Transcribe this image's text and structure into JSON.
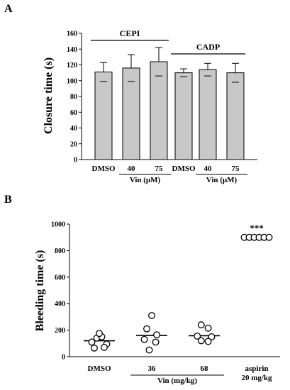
{
  "figure": {
    "panel_a_letter": "A",
    "panel_b_letter": "B"
  },
  "chart_data": [
    {
      "panel": "A",
      "type": "bar",
      "ylabel": "Closure time (s)",
      "ylim": [
        0,
        160
      ],
      "yticks": [
        "0",
        "20",
        "40",
        "60",
        "80",
        "100",
        "120",
        "140",
        "160"
      ],
      "categories": [
        "DMSO",
        "40",
        "75",
        "DMSO",
        "40",
        "75"
      ],
      "values": [
        111,
        116,
        124,
        110,
        114,
        110
      ],
      "errors": [
        12,
        17,
        18,
        5,
        8,
        12
      ],
      "bar_color": "#c8c8c8",
      "groups": [
        {
          "label": "CEPI",
          "range": [
            0,
            2
          ]
        },
        {
          "label": "CADP",
          "range": [
            3,
            5
          ]
        }
      ],
      "sublabels": [
        {
          "label": "Vin (μM)",
          "range": [
            1,
            2
          ]
        },
        {
          "label": "Vin (μM)",
          "range": [
            4,
            5
          ]
        }
      ]
    },
    {
      "panel": "B",
      "type": "scatter",
      "ylabel": "Bleeding time (s)",
      "ylim": [
        0,
        1000
      ],
      "yticks": [
        "0",
        "200",
        "400",
        "600",
        "800",
        "1000"
      ],
      "categories": [
        "DMSO",
        "36",
        "68",
        "aspirin"
      ],
      "category_line2": [
        "",
        "",
        "",
        "20 mg/kg"
      ],
      "points": [
        {
          "category": 0,
          "dx": -1.5,
          "y": 110
        },
        {
          "category": 0,
          "dx": -0.5,
          "y": 140
        },
        {
          "category": 0,
          "dx": 0.5,
          "y": 150
        },
        {
          "category": 0,
          "dx": 1.5,
          "y": 95
        },
        {
          "category": 0,
          "dx": -1,
          "y": 65
        },
        {
          "category": 0,
          "dx": 0,
          "y": 175
        },
        {
          "category": 0,
          "dx": 1,
          "y": 70
        },
        {
          "category": 1,
          "dx": 0,
          "y": 310
        },
        {
          "category": 1,
          "dx": -1,
          "y": 210
        },
        {
          "category": 1,
          "dx": 1,
          "y": 165
        },
        {
          "category": 1,
          "dx": -1.5,
          "y": 130
        },
        {
          "category": 1,
          "dx": 0.8,
          "y": 110
        },
        {
          "category": 1,
          "dx": -0.5,
          "y": 50
        },
        {
          "category": 2,
          "dx": -0.6,
          "y": 240
        },
        {
          "category": 2,
          "dx": 0.8,
          "y": 215
        },
        {
          "category": 2,
          "dx": -1.4,
          "y": 155
        },
        {
          "category": 2,
          "dx": 1.5,
          "y": 150
        },
        {
          "category": 2,
          "dx": -0.6,
          "y": 120
        },
        {
          "category": 2,
          "dx": 0.8,
          "y": 115
        },
        {
          "category": 3,
          "dx": -2.5,
          "y": 900
        },
        {
          "category": 3,
          "dx": -1.5,
          "y": 900
        },
        {
          "category": 3,
          "dx": -0.5,
          "y": 900
        },
        {
          "category": 3,
          "dx": 0.5,
          "y": 900
        },
        {
          "category": 3,
          "dx": 1.5,
          "y": 900
        },
        {
          "category": 3,
          "dx": 2.5,
          "y": 900
        }
      ],
      "means": [
        120,
        160,
        158,
        900
      ],
      "group_label": {
        "label": "Vin (mg/kg)",
        "range": [
          1,
          2
        ]
      },
      "annotation": {
        "text": "***",
        "category": 3
      }
    }
  ]
}
